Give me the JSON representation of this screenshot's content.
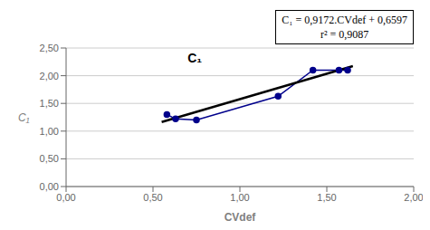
{
  "chart_data": {
    "type": "line",
    "title": "C₁",
    "xlabel": "CVdef",
    "ylabel": "C₁",
    "annotation": [
      "C₁ = 0,9172.CVdef + 0,6597",
      "r² = 0,9087"
    ],
    "xlim": [
      0.0,
      2.0
    ],
    "ylim": [
      0.0,
      2.5
    ],
    "xticks": [
      {
        "value": 0.0,
        "label": "0,00"
      },
      {
        "value": 0.5,
        "label": "0,50"
      },
      {
        "value": 1.0,
        "label": "1,00"
      },
      {
        "value": 1.5,
        "label": "1,50"
      },
      {
        "value": 2.0,
        "label": "2,00"
      }
    ],
    "yticks": [
      {
        "value": 0.0,
        "label": "0,00"
      },
      {
        "value": 0.5,
        "label": "0,50"
      },
      {
        "value": 1.0,
        "label": "1,00"
      },
      {
        "value": 1.5,
        "label": "1,50"
      },
      {
        "value": 2.0,
        "label": "2,00"
      },
      {
        "value": 2.5,
        "label": "2,50"
      }
    ],
    "grid": "y",
    "series": [
      {
        "type": "line",
        "marker": "circle",
        "color": "#00008B",
        "x": [
          0.58,
          0.63,
          0.75,
          1.22,
          1.42,
          1.57,
          1.62
        ],
        "values": [
          1.3,
          1.22,
          1.2,
          1.63,
          2.1,
          2.1,
          2.1
        ]
      },
      {
        "type": "line",
        "color": "#000000",
        "x": [
          0.55,
          1.65
        ],
        "values": [
          1.16416,
          2.17308
        ]
      }
    ]
  }
}
